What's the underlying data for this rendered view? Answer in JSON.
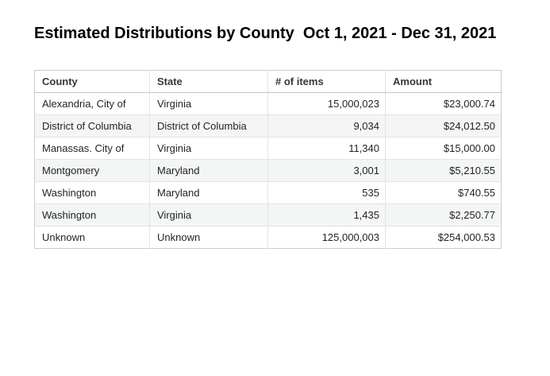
{
  "title": "Estimated Distributions by County  Oct 1, 2021 - Dec 31, 2021",
  "chart_data": {
    "type": "table",
    "title": "Estimated Distributions by County  Oct 1, 2021 - Dec 31, 2021",
    "columns": [
      "County",
      "State",
      "# of items",
      "Amount"
    ],
    "column_align": [
      "left",
      "left",
      "right",
      "right"
    ],
    "rows": [
      [
        "Alexandria, City of",
        "Virginia",
        "15,000,023",
        "$23,000.74"
      ],
      [
        "District of Columbia",
        "District of Columbia",
        "9,034",
        "$24,012.50"
      ],
      [
        "Manassas. City of",
        "Virginia",
        "11,340",
        "$15,000.00"
      ],
      [
        "Montgomery",
        "Maryland",
        "3,001",
        "$5,210.55"
      ],
      [
        "Washington",
        "Maryland",
        "535",
        "$740.55"
      ],
      [
        "Washington",
        "Virginia",
        "1,435",
        "$2,250.77"
      ],
      [
        "Unknown",
        "Unknown",
        "125,000,003",
        "$254,000.53"
      ]
    ],
    "layout": {
      "grid": "on",
      "striped_rows": "even data rows shaded"
    }
  },
  "colors": {
    "title_text": "#000000",
    "header_text": "#35383b",
    "body_text": "#1f2124",
    "table_border": "#c9ccce",
    "grid_line": "#e1e3e4",
    "row_stripe": "#f4f5f5",
    "background": "#ffffff"
  }
}
